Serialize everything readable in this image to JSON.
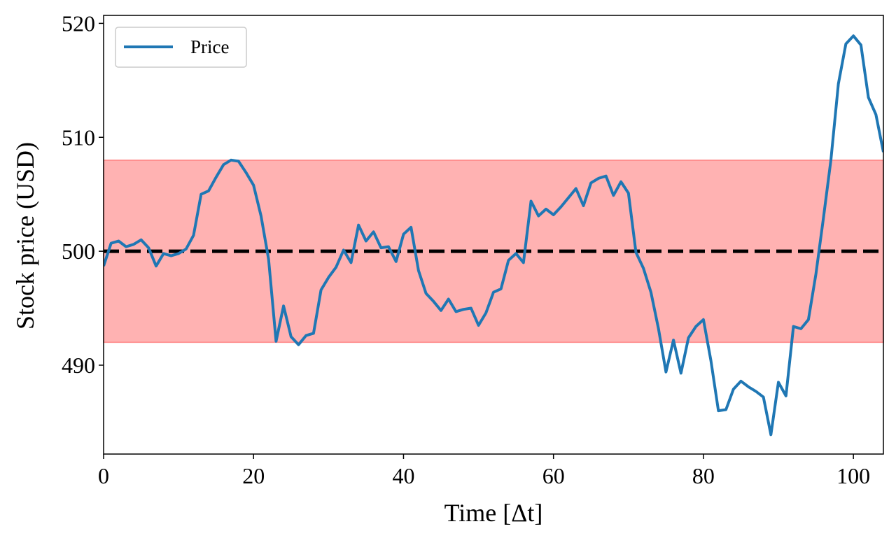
{
  "chart_data": {
    "type": "line",
    "xlabel": "Time [Δt]",
    "ylabel": "Stock price (USD)",
    "x": [
      0,
      1,
      2,
      3,
      4,
      5,
      6,
      7,
      8,
      9,
      10,
      11,
      12,
      13,
      14,
      15,
      16,
      17,
      18,
      19,
      20,
      21,
      22,
      23,
      24,
      25,
      26,
      27,
      28,
      29,
      30,
      31,
      32,
      33,
      34,
      35,
      36,
      37,
      38,
      39,
      40,
      41,
      42,
      43,
      44,
      45,
      46,
      47,
      48,
      49,
      50,
      51,
      52,
      53,
      54,
      55,
      56,
      57,
      58,
      59,
      60,
      61,
      62,
      63,
      64,
      65,
      66,
      67,
      68,
      69,
      70,
      71,
      72,
      73,
      74,
      75,
      76,
      77,
      78,
      79,
      80,
      81,
      82,
      83,
      84,
      85,
      86,
      87,
      88,
      89,
      90,
      91,
      92,
      93,
      94,
      95,
      96,
      97,
      98,
      99,
      100,
      101,
      102,
      103,
      104
    ],
    "series": [
      {
        "name": "Price",
        "color": "#1f77b4",
        "values": [
          498.7,
          500.7,
          500.9,
          500.4,
          500.6,
          501.0,
          500.3,
          498.7,
          499.8,
          499.6,
          499.8,
          500.2,
          501.4,
          505.0,
          505.3,
          506.5,
          507.6,
          508.0,
          507.9,
          506.9,
          505.8,
          503.1,
          499.3,
          492.1,
          495.2,
          492.5,
          491.8,
          492.6,
          492.8,
          496.6,
          497.7,
          498.6,
          500.1,
          499.0,
          502.3,
          500.9,
          501.7,
          500.3,
          500.4,
          499.1,
          501.5,
          502.1,
          498.3,
          496.3,
          495.6,
          494.8,
          495.8,
          494.7,
          494.9,
          495.0,
          493.5,
          494.6,
          496.4,
          496.7,
          499.2,
          499.8,
          499.0,
          504.4,
          503.1,
          503.7,
          503.2,
          503.9,
          504.7,
          505.5,
          504.0,
          506.0,
          506.4,
          506.6,
          504.9,
          506.1,
          505.1,
          499.9,
          498.5,
          496.4,
          493.2,
          489.4,
          492.2,
          489.3,
          492.4,
          493.4,
          494.0,
          490.4,
          486.0,
          486.1,
          487.9,
          488.6,
          488.1,
          487.7,
          487.2,
          483.9,
          488.5,
          487.3,
          493.4,
          493.2,
          494.0,
          498.0,
          502.9,
          508.0,
          514.7,
          518.2,
          518.9,
          518.1,
          513.5,
          512.0,
          508.7
        ]
      }
    ],
    "band": {
      "ymin": 492,
      "ymax": 508,
      "color": "#ff0000",
      "alpha": 0.3
    },
    "hline": {
      "y": 500,
      "color": "#000000",
      "style": "dashed"
    },
    "xlim": [
      0,
      104
    ],
    "ylim": [
      482.2,
      520.7
    ],
    "xticks": [
      0,
      20,
      40,
      60,
      80,
      100
    ],
    "yticks": [
      490,
      500,
      510,
      520
    ],
    "legend": "upper left",
    "grid": false
  }
}
